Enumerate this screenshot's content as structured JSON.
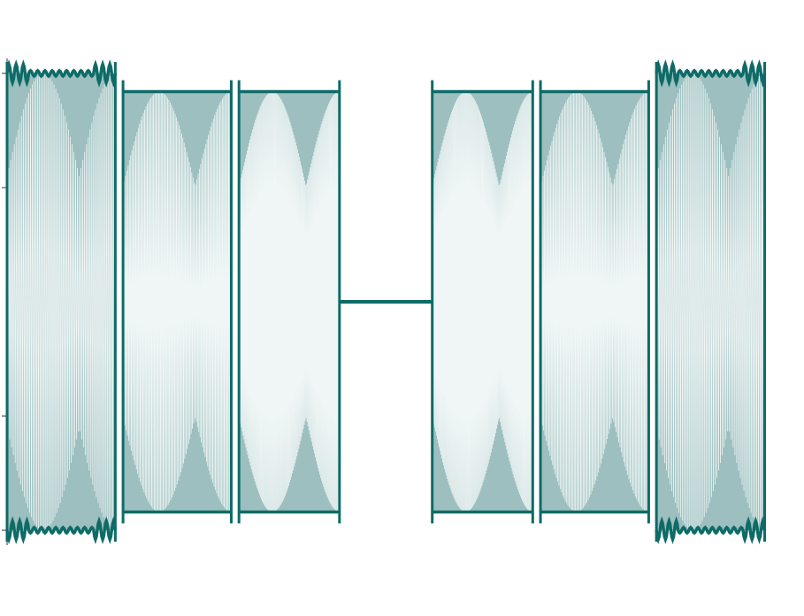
{
  "chart_data": {
    "type": "line",
    "title": "",
    "xlabel": "",
    "ylabel": "",
    "xlim": [
      0,
      1
    ],
    "ylim": [
      -1.05,
      1.05
    ],
    "grid": false,
    "legend": "none",
    "y_ticks": [
      -1,
      -0.5,
      0.5,
      1
    ],
    "colors": {
      "envelope": "#0e6b67",
      "fill": "#9dbfbf",
      "carrier": "#ffffff"
    },
    "series": [
      {
        "segments": [
          {
            "x_start": 0.0,
            "x_end": 0.14,
            "amplitude": 1.0,
            "oscillations": 60,
            "envelope_ripple": 0.04
          },
          {
            "x_start": 0.15,
            "x_end": 0.29,
            "amplitude": 0.92,
            "oscillations": 85,
            "envelope_ripple": 0.0
          },
          {
            "x_start": 0.3,
            "x_end": 0.43,
            "amplitude": 0.92,
            "oscillations": 110,
            "envelope_ripple": 0.0
          },
          {
            "x_start": 0.43,
            "x_end": 0.55,
            "amplitude": 0.0,
            "oscillations": 0,
            "envelope_ripple": 0.0
          },
          {
            "x_start": 0.55,
            "x_end": 0.68,
            "amplitude": 0.92,
            "oscillations": 110,
            "envelope_ripple": 0.0
          },
          {
            "x_start": 0.69,
            "x_end": 0.83,
            "amplitude": 0.92,
            "oscillations": 85,
            "envelope_ripple": 0.0
          },
          {
            "x_start": 0.84,
            "x_end": 0.98,
            "amplitude": 1.0,
            "oscillations": 60,
            "envelope_ripple": 0.04
          }
        ]
      }
    ]
  }
}
